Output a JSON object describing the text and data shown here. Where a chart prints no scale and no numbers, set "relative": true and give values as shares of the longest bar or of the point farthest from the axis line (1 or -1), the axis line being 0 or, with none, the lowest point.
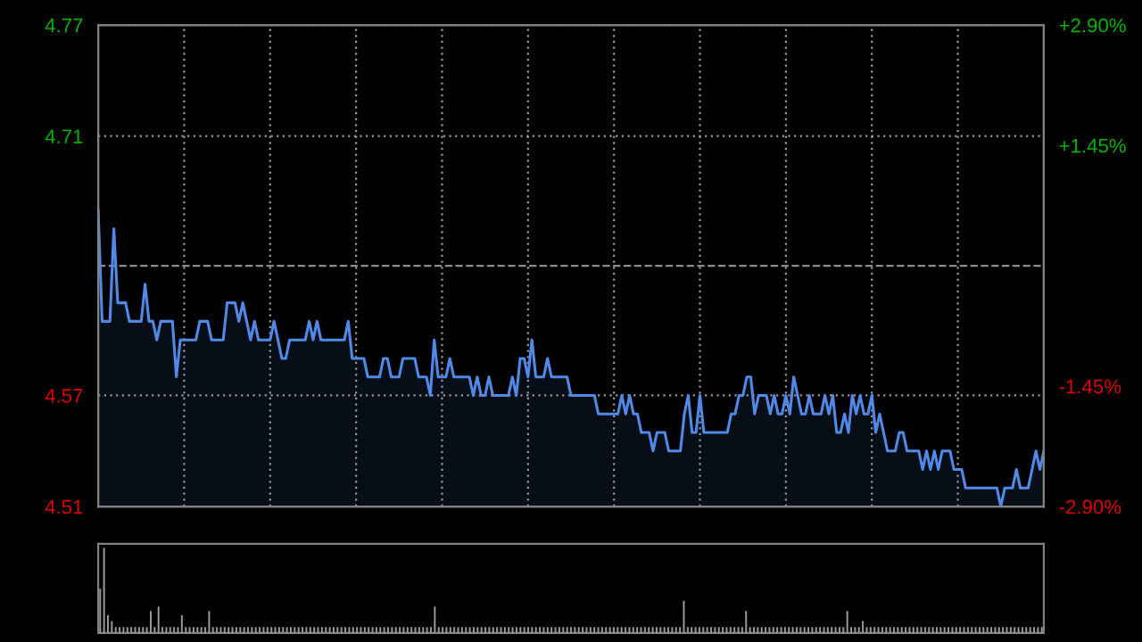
{
  "chart_data": [
    {
      "type": "area",
      "categories": [
        null,
        null,
        null,
        null,
        null,
        null,
        null,
        null,
        null,
        null,
        null,
        null,
        null,
        null,
        null,
        null,
        null,
        null,
        null,
        null,
        null,
        null,
        null,
        null,
        null,
        null,
        null,
        null,
        null,
        null,
        null,
        null,
        null,
        null,
        null,
        null,
        null,
        null,
        null,
        null,
        null,
        null,
        null,
        null,
        null,
        null,
        null,
        null,
        null,
        null,
        null,
        null,
        null,
        null,
        null,
        null,
        null,
        null,
        null,
        null,
        null,
        null,
        null,
        null,
        null,
        null,
        null,
        null,
        null,
        null,
        null,
        null,
        null,
        null,
        null,
        null,
        null,
        null,
        null,
        null,
        null,
        null,
        null,
        null,
        null,
        null,
        null,
        null,
        null,
        null,
        null,
        null,
        null,
        null,
        null,
        null,
        null,
        null,
        null,
        null,
        null,
        null,
        null,
        null,
        null,
        null,
        null,
        null,
        null,
        null,
        null,
        null,
        null,
        null,
        null,
        null,
        null,
        null,
        null,
        null,
        null,
        null,
        null,
        null,
        null,
        null,
        null,
        null,
        null,
        null,
        null,
        null,
        null,
        null,
        null,
        null,
        null,
        null,
        null,
        null,
        null,
        null,
        null,
        null,
        null,
        null,
        null,
        null,
        null,
        null,
        null,
        null,
        null,
        null,
        null,
        null,
        null,
        null,
        null,
        null,
        null,
        null,
        null,
        null,
        null,
        null,
        null,
        null,
        null,
        null,
        null,
        null,
        null,
        null,
        null,
        null,
        null,
        null,
        null,
        null,
        null,
        null,
        null,
        null,
        null,
        null,
        null,
        null,
        null,
        null,
        null,
        null,
        null,
        null,
        null,
        null,
        null,
        null,
        null,
        null,
        null,
        null,
        null,
        null,
        null,
        null,
        null,
        null,
        null,
        null,
        null,
        null,
        null,
        null,
        null,
        null,
        null,
        null,
        null,
        null,
        null,
        null,
        null,
        null,
        null,
        null,
        null,
        null,
        null,
        null,
        null,
        null,
        null,
        null,
        null,
        null,
        null,
        null,
        null,
        null,
        null,
        null,
        null
      ],
      "series": [
        {
          "color": "#4f8ae8",
          "values": [
            4.67,
            4.61,
            4.61,
            4.61,
            4.66,
            4.62,
            4.62,
            4.62,
            4.61,
            4.61,
            4.61,
            4.61,
            4.63,
            4.61,
            4.61,
            4.6,
            4.61,
            4.61,
            4.61,
            4.61,
            4.58,
            4.6,
            4.6,
            4.6,
            4.6,
            4.6,
            4.61,
            4.61,
            4.61,
            4.6,
            4.6,
            4.6,
            4.6,
            4.62,
            4.62,
            4.62,
            4.61,
            4.62,
            4.61,
            4.6,
            4.61,
            4.6,
            4.6,
            4.6,
            4.6,
            4.61,
            4.6,
            4.59,
            4.59,
            4.6,
            4.6,
            4.6,
            4.6,
            4.6,
            4.61,
            4.6,
            4.61,
            4.6,
            4.6,
            4.6,
            4.6,
            4.6,
            4.6,
            4.6,
            4.61,
            4.59,
            4.59,
            4.59,
            4.59,
            4.58,
            4.58,
            4.58,
            4.58,
            4.59,
            4.59,
            4.58,
            4.58,
            4.58,
            4.59,
            4.59,
            4.59,
            4.59,
            4.58,
            4.58,
            4.58,
            4.57,
            4.6,
            4.58,
            4.58,
            4.58,
            4.59,
            4.58,
            4.58,
            4.58,
            4.58,
            4.58,
            4.57,
            4.58,
            4.57,
            4.57,
            4.58,
            4.57,
            4.57,
            4.57,
            4.57,
            4.57,
            4.58,
            4.57,
            4.59,
            4.59,
            4.58,
            4.6,
            4.58,
            4.58,
            4.58,
            4.59,
            4.58,
            4.58,
            4.58,
            4.58,
            4.58,
            4.57,
            4.57,
            4.57,
            4.57,
            4.57,
            4.57,
            4.57,
            4.56,
            4.56,
            4.56,
            4.56,
            4.56,
            4.56,
            4.57,
            4.56,
            4.57,
            4.56,
            4.56,
            4.55,
            4.55,
            4.55,
            4.54,
            4.55,
            4.55,
            4.55,
            4.54,
            4.54,
            4.54,
            4.54,
            4.56,
            4.57,
            4.55,
            4.55,
            4.57,
            4.55,
            4.55,
            4.55,
            4.55,
            4.55,
            4.55,
            4.55,
            4.56,
            4.56,
            4.57,
            4.57,
            4.58,
            4.58,
            4.56,
            4.57,
            4.57,
            4.57,
            4.56,
            4.57,
            4.56,
            4.56,
            4.57,
            4.56,
            4.58,
            4.57,
            4.56,
            4.56,
            4.57,
            4.56,
            4.56,
            4.56,
            4.57,
            4.56,
            4.57,
            4.55,
            4.55,
            4.56,
            4.55,
            4.57,
            4.56,
            4.57,
            4.56,
            4.56,
            4.57,
            4.55,
            4.56,
            4.55,
            4.54,
            4.54,
            4.54,
            4.55,
            4.55,
            4.54,
            4.54,
            4.54,
            4.54,
            4.53,
            4.54,
            4.53,
            4.54,
            4.53,
            4.54,
            4.54,
            4.54,
            4.53,
            4.53,
            4.53,
            4.52,
            4.52,
            4.52,
            4.52,
            4.52,
            4.52,
            4.52,
            4.52,
            4.52,
            4.51,
            4.52,
            4.52,
            4.52,
            4.53,
            4.52,
            4.52,
            4.52,
            4.53,
            4.54,
            4.53,
            4.54
          ]
        }
      ],
      "ylim": [
        4.51,
        4.77
      ],
      "yticks": [
        4.77,
        4.71,
        4.57,
        4.51
      ],
      "y2lim": [
        -2.9,
        2.9
      ],
      "y2ticks": [
        {
          "value": 2.9,
          "label": "+2.90%"
        },
        {
          "value": 1.45,
          "label": "+1.45%"
        },
        {
          "value": -1.45,
          "label": "-1.45%"
        },
        {
          "value": -2.9,
          "label": "-2.90%"
        }
      ],
      "ref_lines": [
        {
          "axis": "y",
          "value": 4.64,
          "color": "#8c8c8c",
          "line_style": "dashed"
        }
      ],
      "grid": true,
      "line_style": "solid",
      "marker": "none",
      "tick_labels": "y"
    },
    {
      "type": "bar",
      "relative": true,
      "tick_labels": false,
      "color": "#9a9a9a",
      "categories": [
        null,
        null,
        null,
        null,
        null,
        null,
        null,
        null,
        null,
        null,
        null,
        null,
        null,
        null,
        null,
        null,
        null,
        null,
        null,
        null,
        null,
        null,
        null,
        null,
        null,
        null,
        null,
        null,
        null,
        null,
        null,
        null,
        null,
        null,
        null,
        null,
        null,
        null,
        null,
        null,
        null,
        null,
        null,
        null,
        null,
        null,
        null,
        null,
        null,
        null,
        null,
        null,
        null,
        null,
        null,
        null,
        null,
        null,
        null,
        null,
        null,
        null,
        null,
        null,
        null,
        null,
        null,
        null,
        null,
        null,
        null,
        null,
        null,
        null,
        null,
        null,
        null,
        null,
        null,
        null,
        null,
        null,
        null,
        null,
        null,
        null,
        null,
        null,
        null,
        null,
        null,
        null,
        null,
        null,
        null,
        null,
        null,
        null,
        null,
        null,
        null,
        null,
        null,
        null,
        null,
        null,
        null,
        null,
        null,
        null,
        null,
        null,
        null,
        null,
        null,
        null,
        null,
        null,
        null,
        null,
        null,
        null,
        null,
        null,
        null,
        null,
        null,
        null,
        null,
        null,
        null,
        null,
        null,
        null,
        null,
        null,
        null,
        null,
        null,
        null,
        null,
        null,
        null,
        null,
        null,
        null,
        null,
        null,
        null,
        null,
        null,
        null,
        null,
        null,
        null,
        null,
        null,
        null,
        null,
        null,
        null,
        null,
        null,
        null,
        null,
        null,
        null,
        null,
        null,
        null,
        null,
        null,
        null,
        null,
        null,
        null,
        null,
        null,
        null,
        null,
        null,
        null,
        null,
        null,
        null,
        null,
        null,
        null,
        null,
        null,
        null,
        null,
        null,
        null,
        null,
        null,
        null,
        null,
        null,
        null,
        null,
        null,
        null,
        null,
        null,
        null,
        null,
        null,
        null,
        null,
        null,
        null,
        null,
        null,
        null,
        null,
        null,
        null,
        null,
        null,
        null,
        null,
        null,
        null,
        null,
        null,
        null,
        null,
        null,
        null,
        null,
        null,
        null,
        null,
        null,
        null,
        null,
        null,
        null,
        null,
        null,
        null,
        null
      ],
      "values": [
        0.52,
        1,
        0.21,
        0.14,
        0.07,
        0.07,
        0.07,
        0.07,
        0.07,
        0.07,
        0.07,
        0.07,
        0.07,
        0.26,
        0.07,
        0.31,
        0.07,
        0.07,
        0.07,
        0.07,
        0.07,
        0.21,
        0.07,
        0.07,
        0.07,
        0.07,
        0.07,
        0.07,
        0.26,
        0.07,
        0.07,
        0.07,
        0.07,
        0.07,
        0.07,
        0.07,
        0.07,
        0.07,
        0.07,
        0.07,
        0.07,
        0.07,
        0.07,
        0.07,
        0.07,
        0.07,
        0.07,
        0.07,
        0.07,
        0.07,
        0.07,
        0.07,
        0.07,
        0.07,
        0.07,
        0.07,
        0.07,
        0.07,
        0.07,
        0.07,
        0.07,
        0.07,
        0.07,
        0.07,
        0.07,
        0.07,
        0.07,
        0.07,
        0.07,
        0.07,
        0.07,
        0.07,
        0.07,
        0.07,
        0.07,
        0.07,
        0.07,
        0.07,
        0.07,
        0.07,
        0.07,
        0.07,
        0.07,
        0.07,
        0.07,
        0.07,
        0.31,
        0.07,
        0.07,
        0.07,
        0.07,
        0.07,
        0.07,
        0.07,
        0.07,
        0.07,
        0.07,
        0.07,
        0.07,
        0.07,
        0.07,
        0.07,
        0.07,
        0.07,
        0.07,
        0.07,
        0.07,
        0.07,
        0.07,
        0.07,
        0.07,
        0.07,
        0.07,
        0.07,
        0.07,
        0.07,
        0.07,
        0.07,
        0.07,
        0.07,
        0.07,
        0.07,
        0.07,
        0.07,
        0.07,
        0.07,
        0.07,
        0.07,
        0.07,
        0.07,
        0.07,
        0.07,
        0.07,
        0.07,
        0.07,
        0.07,
        0.07,
        0.07,
        0.07,
        0.07,
        0.07,
        0.07,
        0.07,
        0.07,
        0.07,
        0.07,
        0.07,
        0.07,
        0.07,
        0.07,
        0.38,
        0.07,
        0.07,
        0.07,
        0.07,
        0.07,
        0.07,
        0.07,
        0.07,
        0.07,
        0.07,
        0.07,
        0.07,
        0.07,
        0.07,
        0.07,
        0.26,
        0.07,
        0.07,
        0.07,
        0.07,
        0.07,
        0.07,
        0.07,
        0.07,
        0.07,
        0.07,
        0.07,
        0.07,
        0.07,
        0.07,
        0.07,
        0.07,
        0.07,
        0.07,
        0.07,
        0.07,
        0.07,
        0.07,
        0.07,
        0.07,
        0.07,
        0.26,
        0.07,
        0.07,
        0.07,
        0.14,
        0.07,
        0.07,
        0.07,
        0.07,
        0.07,
        0.07,
        0.07,
        0.07,
        0.07,
        0.07,
        0.07,
        0.07,
        0.07,
        0.07,
        0.07,
        0.07,
        0.07,
        0.07,
        0.07,
        0.07,
        0.07,
        0.07,
        0.07,
        0.07,
        0.07,
        0.07,
        0.07,
        0.07,
        0.07,
        0.07,
        0.07,
        0.07,
        0.07,
        0.07,
        0.07,
        0.07,
        0.07,
        0.07,
        0.07,
        0.07,
        0.07,
        0.07,
        0.07,
        0.07,
        0.07,
        0.07
      ]
    }
  ]
}
